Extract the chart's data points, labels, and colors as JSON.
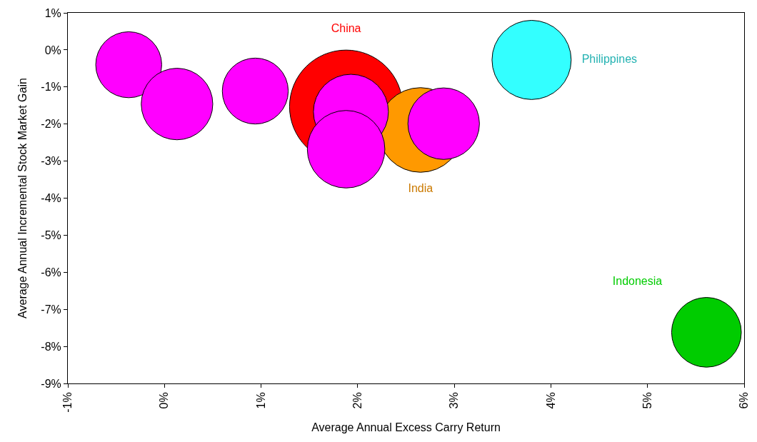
{
  "chart_data": {
    "type": "bubble",
    "xlabel": "Average Annual Excess Carry Return",
    "ylabel": "Average Annual Incremental Stock Market Gain",
    "xlim": [
      -1,
      6
    ],
    "xticks": [
      {
        "value": -1,
        "label": "-1%"
      },
      {
        "value": 0,
        "label": "0%"
      },
      {
        "value": 1,
        "label": "1%"
      },
      {
        "value": 2,
        "label": "2%"
      },
      {
        "value": 3,
        "label": "3%"
      },
      {
        "value": 4,
        "label": "4%"
      },
      {
        "value": 5,
        "label": "5%"
      },
      {
        "value": 6,
        "label": "6%"
      }
    ],
    "ylim": [
      -9,
      1
    ],
    "yticks": [
      {
        "value": 1,
        "label": "1%"
      },
      {
        "value": 0,
        "label": "0%"
      },
      {
        "value": -1,
        "label": "-1%"
      },
      {
        "value": -2,
        "label": "-2%"
      },
      {
        "value": -3,
        "label": "-3%"
      },
      {
        "value": -4,
        "label": "-4%"
      },
      {
        "value": -5,
        "label": "-5%"
      },
      {
        "value": -6,
        "label": "-6%"
      },
      {
        "value": -7,
        "label": "-7%"
      },
      {
        "value": -8,
        "label": "-8%"
      },
      {
        "value": -9,
        "label": "-9%"
      }
    ],
    "legend": false,
    "series": [
      {
        "name": "China",
        "color": "#ff0000",
        "x": [
          1.88
        ],
        "values": [
          -1.53
        ],
        "sizes": [
          1
        ]
      },
      {
        "name": "India",
        "color": "#ff9900",
        "x": [
          2.65
        ],
        "values": [
          -2.16
        ],
        "sizes": [
          0.56
        ]
      },
      {
        "color": "#ff00ff",
        "x": [
          -0.37,
          0.13,
          0.94,
          1.93,
          1.88,
          2.89
        ],
        "values": [
          -0.4,
          -1.46,
          -1.11,
          -1.67,
          -2.68,
          -1.99
        ],
        "sizes": [
          0.34,
          0.4,
          0.34,
          0.44,
          0.47,
          0.4
        ]
      },
      {
        "name": "Philippines",
        "color": "#33ffff",
        "x": [
          3.8
        ],
        "values": [
          -0.27
        ],
        "sizes": [
          0.49
        ]
      },
      {
        "name": "Indonesia",
        "color": "#00cc00",
        "x": [
          5.61
        ],
        "values": [
          -7.62
        ],
        "sizes": [
          0.38
        ]
      }
    ]
  }
}
